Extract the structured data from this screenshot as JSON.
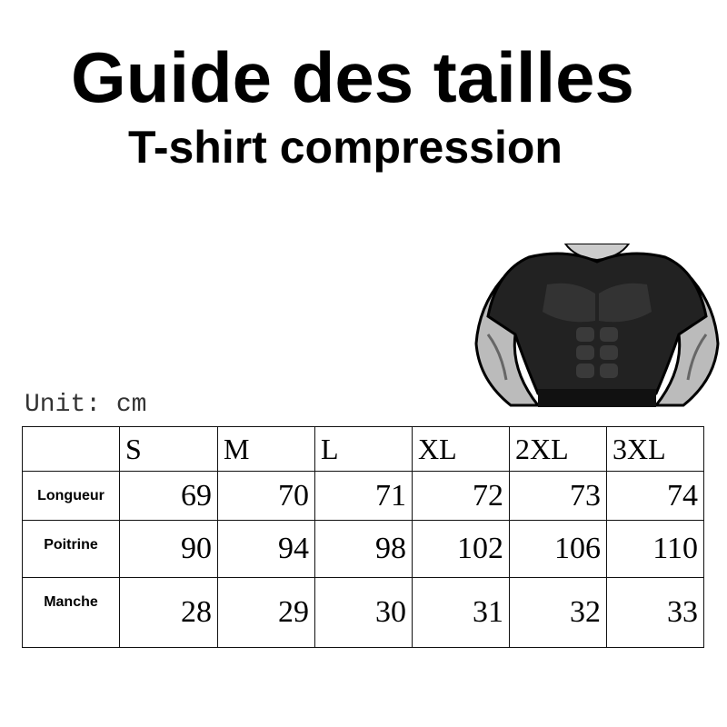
{
  "header": {
    "title": "Guide des tailles",
    "subtitle": "T-shirt compression"
  },
  "unit_label": "Unit: cm",
  "table": {
    "sizes": [
      "S",
      "M",
      "L",
      "XL",
      "2XL",
      "3XL"
    ],
    "rows": [
      {
        "label": "Longueur",
        "values": [
          "69",
          "70",
          "71",
          "72",
          "73",
          "74"
        ]
      },
      {
        "label": "Poitrine",
        "values": [
          "90",
          "94",
          "98",
          "102",
          "106",
          "110"
        ]
      },
      {
        "label": "Manche",
        "values": [
          "28",
          "29",
          "30",
          "31",
          "32",
          "33"
        ]
      }
    ]
  },
  "illustration": {
    "icon": "muscular-torso-in-compression-shirt"
  }
}
